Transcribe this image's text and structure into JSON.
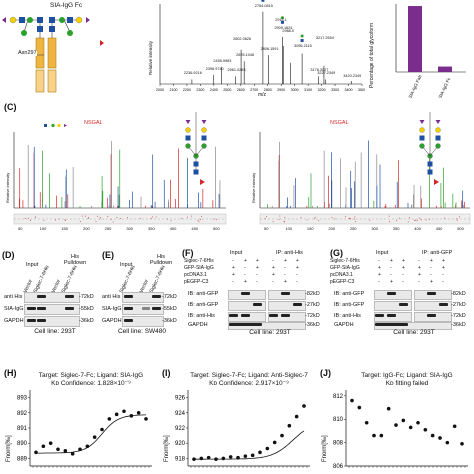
{
  "panel_a": {
    "title": "SIA-IgG Fc",
    "site_label": "Asn297"
  },
  "panel_b": {
    "ylabel": "Relative intensity",
    "xlabel": "m/z",
    "ticks": [
      "2000",
      "2100",
      "2200",
      "2300",
      "2400",
      "2500",
      "2600",
      "2700",
      "2800",
      "2900",
      "3000",
      "3100",
      "3200",
      "3300",
      "3400",
      "3500"
    ],
    "peak_labels": [
      "2236.9216",
      "2398.9740",
      "2455.9983",
      "2561.0263",
      "2602.0626",
      "2625.1046",
      "2764.0815",
      "2806.1591",
      "2909.1824",
      "3055.2115",
      "3217.2654",
      "3176.3027",
      "3227.2349",
      "3420.2349",
      "2915.1",
      "2968.0"
    ]
  },
  "panel_bar": {
    "ylabel": "Percentage of total glycoform",
    "categories": [
      "SIA-IgG Fab",
      "SIA-IgG Fc"
    ],
    "values": [
      97,
      8
    ],
    "color": "#7b2d8e"
  },
  "panel_c": {
    "label": "(C)",
    "peptide": "NSGAL",
    "ylabel": "Relative intensity",
    "xticks": [
      "50",
      "100",
      "150",
      "200",
      "250",
      "300",
      "350",
      "400",
      "450",
      "500"
    ],
    "color_n": "#1f4fa0",
    "color_y": "#d62728",
    "color_b": "#2ca02c"
  },
  "panel_d": {
    "label": "(D)",
    "cols": [
      "Vector",
      "Siglec-7-6His",
      "Vector",
      "Siglec-7-6His"
    ],
    "groups": [
      "Input",
      "His Pulldown"
    ],
    "rows": [
      "anti His",
      "SIA-IgG",
      "GAPDH"
    ],
    "mw": [
      "-72kD",
      "-55kD",
      "-36kD"
    ],
    "cell_line": "Cell line: 293T"
  },
  "panel_e": {
    "label": "(E)",
    "cols": [
      "Siglec-7-6His",
      "Vector",
      "Siglec-7-6His"
    ],
    "groups": [
      "Input",
      "His Pulldown"
    ],
    "rows": [
      "anti His",
      "SIA-IgG",
      "GAPDH"
    ],
    "mw": [
      "-72kD",
      "-55kD",
      "-36kD"
    ],
    "cell_line": "Cell line: SW480"
  },
  "panel_f": {
    "label": "(F)",
    "groups": [
      "Input",
      "IP: anti-His"
    ],
    "conditions": [
      "Siglec-7-6His",
      "GFP-SIA-IgG",
      "pcDNA3.1",
      "pEGFP-C3"
    ],
    "signs": [
      [
        "-",
        "+",
        "+",
        "-",
        "+",
        "+"
      ],
      [
        "+",
        "-",
        "+",
        "+",
        "-",
        "+"
      ],
      [
        "+",
        "-",
        "-",
        "+",
        "-",
        "-"
      ],
      [
        "-",
        "+",
        "-",
        "-",
        "+",
        "-"
      ]
    ],
    "rows": [
      "IB: anti-GFP",
      "IB: anti-GFP",
      "IB: anti-His",
      "GAPDH"
    ],
    "mw": [
      "-82kD",
      "-27kD",
      "-72kD",
      "-36kD"
    ],
    "cell_line": "Cell line: 293T"
  },
  "panel_g": {
    "label": "(G)",
    "groups": [
      "Input",
      "IP: anti-GFP"
    ],
    "conditions": [
      "Siglec-7-6His",
      "GFP-SIA-IgG",
      "pcDNA3.1",
      "pEGFP-C3"
    ],
    "signs": [
      [
        "-",
        "+",
        "+",
        "-",
        "+",
        "+"
      ],
      [
        "+",
        "-",
        "+",
        "+",
        "-",
        "+"
      ],
      [
        "+",
        "-",
        "-",
        "+",
        "-",
        "-"
      ],
      [
        "-",
        "+",
        "-",
        "-",
        "+",
        "-"
      ]
    ],
    "rows": [
      "IB: anti-GFP",
      "IB: anti-GFP",
      "IB: anti-His",
      "GAPDH"
    ],
    "mw": [
      "-82kD",
      "-27kD",
      "-72kD",
      "-36kD"
    ],
    "cell_line": "Cell line: 293T"
  },
  "panel_h": {
    "label": "(H)",
    "title1": "Target: Siglec-7-Fc; Ligand: SIA-IgG",
    "title2": "Kᴅ Confidence: 1.828×10⁻⁹",
    "ylabel": "Fnorm[‰]",
    "yticks": [
      "893",
      "892",
      "891",
      "890",
      "889"
    ]
  },
  "panel_i": {
    "label": "(I)",
    "title1": "Target: Siglec-7-Fc; Ligand: Anti-Siglec-7",
    "title2": "Kᴅ Confidence: 2.917×10⁻⁹",
    "ylabel": "Fnorm[‰]",
    "yticks": [
      "926",
      "924",
      "922",
      "920",
      "918"
    ]
  },
  "panel_j": {
    "label": "(J)",
    "title1": "Target: IgG-Fc; Ligand: SIA-IgG",
    "title2": "Kᴅ fitting failed",
    "ylabel": "Fnorm[‰]",
    "yticks": [
      "812",
      "810",
      "808",
      "806"
    ]
  },
  "chart_data": [
    {
      "type": "bar",
      "categories": [
        "SIA-IgG Fab",
        "SIA-IgG Fc"
      ],
      "values": [
        97,
        8
      ],
      "ylabel": "Percentage of total glycoform",
      "ylim": [
        0,
        100
      ]
    },
    {
      "type": "scatter",
      "title": "Target: Siglec-7-Fc; Ligand: SIA-IgG",
      "ylabel": "Fnorm[‰]",
      "x": [
        1,
        2,
        3,
        4,
        5,
        6,
        7,
        8,
        9,
        10,
        11,
        12,
        13,
        14,
        15,
        16
      ],
      "y": [
        889.4,
        889.8,
        890.0,
        889.6,
        889.5,
        889.3,
        889.6,
        889.8,
        890.4,
        890.9,
        891.6,
        891.9,
        892.1,
        891.8,
        892.0,
        891.6
      ],
      "fit": "sigmoid",
      "ylim": [
        888.5,
        893.5
      ]
    },
    {
      "type": "scatter",
      "title": "Target: Siglec-7-Fc; Ligand: Anti-Siglec-7",
      "ylabel": "Fnorm[‰]",
      "x": [
        1,
        2,
        3,
        4,
        5,
        6,
        7,
        8,
        9,
        10,
        11,
        12,
        13,
        14,
        15,
        16
      ],
      "y": [
        917.9,
        918.0,
        918.1,
        917.9,
        918.0,
        918.2,
        918.1,
        918.3,
        918.4,
        918.8,
        919.3,
        920.1,
        921.0,
        922.3,
        923.5,
        924.9
      ],
      "fit": "sigmoid",
      "ylim": [
        917,
        927
      ]
    },
    {
      "type": "scatter",
      "title": "Target: IgG-Fc; Ligand: SIA-IgG",
      "ylabel": "Fnorm[‰]",
      "x": [
        1,
        2,
        3,
        4,
        5,
        6,
        7,
        8,
        9,
        10,
        11,
        12,
        13,
        14,
        15,
        16
      ],
      "y": [
        811.6,
        811.0,
        809.7,
        808.6,
        808.6,
        810.9,
        809.5,
        809.9,
        809.3,
        809.7,
        809.1,
        808.6,
        808.4,
        808.0,
        809.4,
        807.9
      ],
      "ylim": [
        806,
        812.5
      ]
    }
  ]
}
